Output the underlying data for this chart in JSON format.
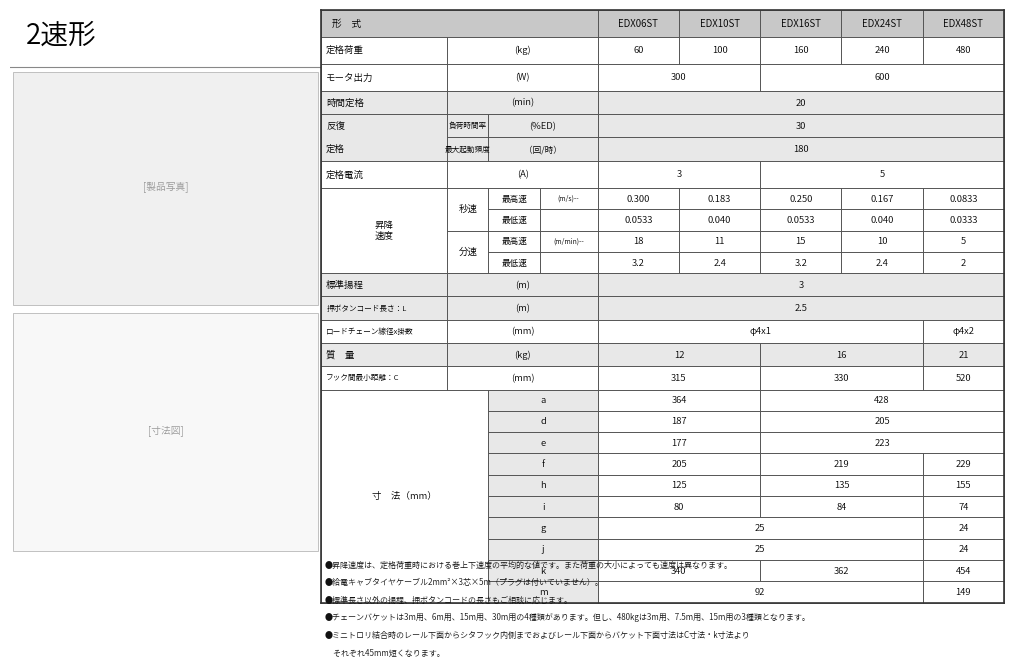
{
  "title": "2速形",
  "hdr_bg": "#c8c8c8",
  "light_bg": "#e8e8e8",
  "white_bg": "#ffffff",
  "border_color": "#555555",
  "models": [
    "EDX06ST",
    "EDX10ST",
    "EDX16ST",
    "EDX24ST",
    "EDX48ST"
  ],
  "notes": [
    "●昇降速度は、定格荷重時における巻上下速度の平均的な値です。また荷重の大小によっても速度は異なります。",
    "●給電キャブタイヤケーブル2mm²×3芯×5m（プラグは付いていません）。",
    "●標準長さ以外の揚程、押ボタンコードの長さもご相談に応じます。",
    "●チェーンバケットは3m用、6m用、15m用、30m用の4種類があります。但し、480kgは3m用、7.5m用、15m用の3種類となります。",
    "●ミニトロリ結合時のレール下面からシタフック内側までおよびレール下面からバケット下面寸法はC寸法・k寸法より",
    "　それぞれ45mm短くなります。"
  ]
}
